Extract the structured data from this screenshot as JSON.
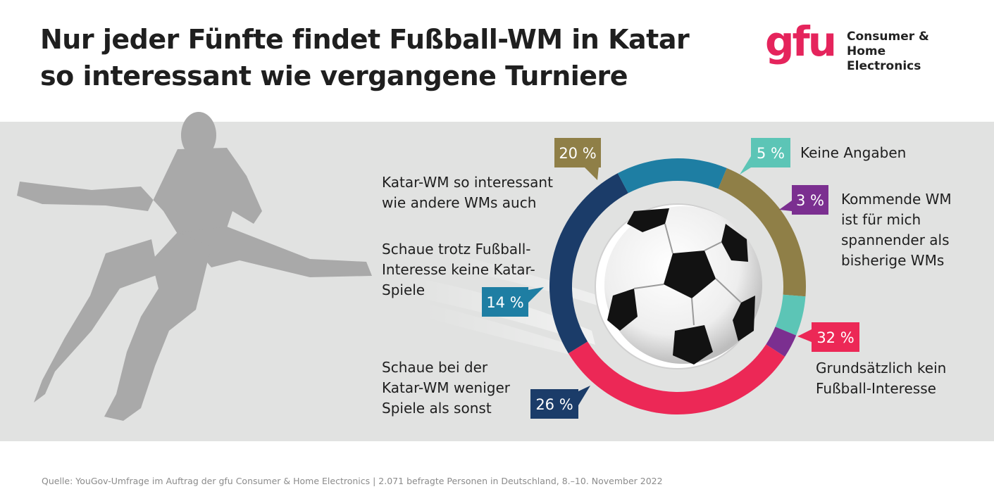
{
  "title": {
    "line1": "Nur jeder Fünfte findet Fußball-WM in Katar",
    "line2": "so interessant wie vergangene Turniere"
  },
  "logo": {
    "mark": "gfu",
    "line1": "Consumer &",
    "line2": "Home Electronics"
  },
  "source": "Quelle: YouGov-Umfrage im Auftrag der gfu Consumer & Home Electronics | 2.071 befragte Personen in Deutschland, 8.–10. November 2022",
  "chart_data": {
    "type": "pie",
    "donut": true,
    "title": "Nur jeder Fünfte findet Fußball-WM in Katar so interessant wie vergangene Turniere",
    "slices": [
      {
        "key": "interessant",
        "pct_label": "20 %",
        "value": 20,
        "color": "#8f7f47",
        "label_lines": [
          "Katar-WM so interessant",
          "wie andere WMs auch"
        ]
      },
      {
        "key": "keine_angaben",
        "pct_label": "5 %",
        "value": 5,
        "color": "#5cc5b6",
        "label_lines": [
          "Keine Angaben"
        ]
      },
      {
        "key": "kommende",
        "pct_label": "3 %",
        "value": 3,
        "color": "#7b2f90",
        "label_lines": [
          "Kommende WM",
          "ist für mich",
          "spannender als",
          "bisherige WMs"
        ]
      },
      {
        "key": "kein_interesse",
        "pct_label": "32 %",
        "value": 32,
        "color": "#ec2856",
        "label_lines": [
          "Grundsätzlich kein",
          "Fußball-Interesse"
        ]
      },
      {
        "key": "weniger",
        "pct_label": "26 %",
        "value": 26,
        "color": "#1b3c69",
        "label_lines": [
          "Schaue bei der",
          "Katar-WM weniger",
          "Spiele als sonst"
        ]
      },
      {
        "key": "keine_spiele",
        "pct_label": "14 %",
        "value": 14,
        "color": "#1e7ea3",
        "label_lines": [
          "Schaue trotz Fußball-",
          "Interesse keine Katar-",
          "Spiele"
        ]
      }
    ]
  }
}
